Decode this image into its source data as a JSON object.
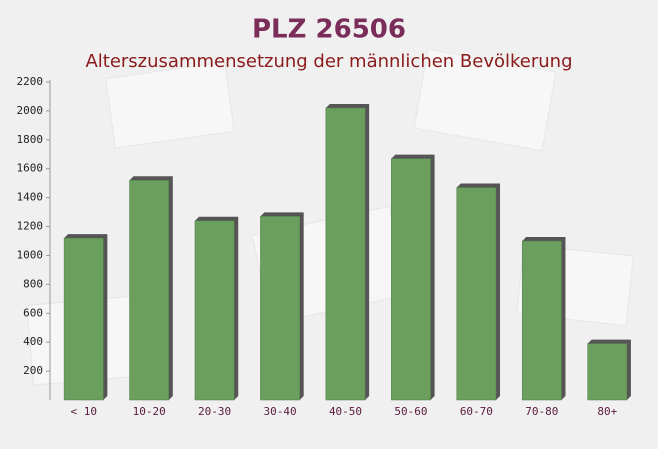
{
  "chart_data": {
    "type": "bar",
    "title": "PLZ 26506",
    "subtitle": "Alterszusammensetzung der männlichen Bevölkerung",
    "categories": [
      "< 10",
      "10-20",
      "20-30",
      "30-40",
      "40-50",
      "50-60",
      "60-70",
      "70-80",
      "80+"
    ],
    "values": [
      1120,
      1520,
      1240,
      1270,
      2020,
      1670,
      1470,
      1100,
      390
    ],
    "color": "#6a9f5e",
    "ylim": [
      0,
      2200
    ],
    "yticks": [
      200,
      400,
      600,
      800,
      1000,
      1200,
      1400,
      1600,
      1800,
      2000,
      2200
    ],
    "grid": false
  }
}
